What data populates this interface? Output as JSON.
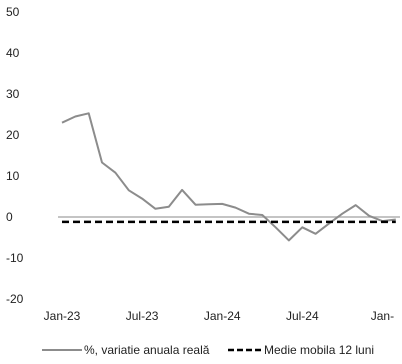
{
  "chart_data": {
    "type": "line",
    "title": "",
    "xlabel": "",
    "ylabel": "",
    "ylim": [
      -20,
      50
    ],
    "yticks": [
      50,
      40,
      30,
      20,
      10,
      0,
      -10,
      -20
    ],
    "xtick_labels": [
      "Jan-23",
      "Jul-23",
      "Jan-24",
      "Jul-24",
      "Jan-"
    ],
    "x": [
      "2023-01",
      "2023-02",
      "2023-03",
      "2023-04",
      "2023-05",
      "2023-06",
      "2023-07",
      "2023-08",
      "2023-09",
      "2023-10",
      "2023-11",
      "2023-12",
      "2024-01",
      "2024-02",
      "2024-03",
      "2024-04",
      "2024-05",
      "2024-06",
      "2024-07",
      "2024-08",
      "2024-09",
      "2024-10",
      "2024-11",
      "2024-12",
      "2025-01",
      "2025-02"
    ],
    "series": [
      {
        "name": "%, variatie anuala reală",
        "color": "#8c8c8c",
        "style": "solid",
        "values": [
          23,
          24.5,
          25.3,
          13.3,
          10.8,
          6.5,
          4.5,
          2.0,
          2.5,
          6.6,
          3.0,
          3.1,
          3.2,
          2.3,
          0.8,
          0.5,
          -2.5,
          -5.7,
          -2.5,
          -4.1,
          -1.6,
          0.8,
          2.9,
          0.3,
          -1.0,
          -0.6
        ]
      },
      {
        "name": "Medie mobila 12 luni",
        "color": "#000000",
        "style": "dashed",
        "values": [
          -1.2,
          -1.2,
          -1.2,
          -1.2,
          -1.2,
          -1.2,
          -1.2,
          -1.2,
          -1.2,
          -1.2,
          -1.2,
          -1.2,
          -1.2,
          -1.2,
          -1.2,
          -1.2,
          -1.2,
          -1.2,
          -1.2,
          -1.2,
          -1.2,
          -1.2,
          -1.2,
          -1.2,
          -1.2,
          -1.2
        ]
      }
    ],
    "zero_line_color": "#b0b0b0",
    "grid": false,
    "legend_position": "bottom"
  }
}
